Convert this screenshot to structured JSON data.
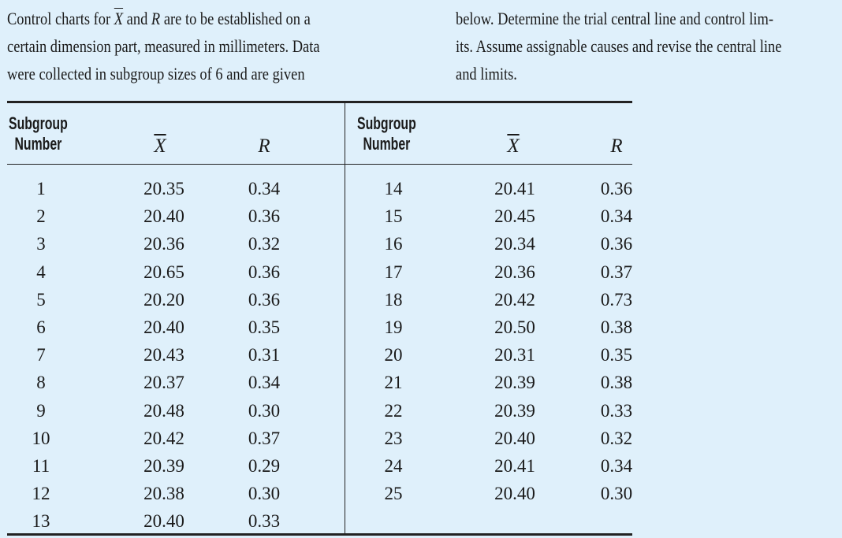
{
  "intro": {
    "left_lines": [
      [
        "Control charts for ",
        "X",
        " and ",
        "R",
        " are to be established on a"
      ],
      [
        "certain dimension part, measured in millimeters. Data"
      ],
      [
        "were collected in subgroup sizes of 6 and are given"
      ]
    ],
    "right_lines": [
      "below. Determine the trial central line and control lim-",
      "its. Assume assignable causes and revise the central line",
      "and limits."
    ]
  },
  "table": {
    "headers": {
      "subgroup_line1": "Subgroup",
      "subgroup_line2": "Number",
      "xbar": "X",
      "r": "R"
    },
    "left_rows": [
      [
        "1",
        "20.35",
        "0.34"
      ],
      [
        "2",
        "20.40",
        "0.36"
      ],
      [
        "3",
        "20.36",
        "0.32"
      ],
      [
        "4",
        "20.65",
        "0.36"
      ],
      [
        "5",
        "20.20",
        "0.36"
      ],
      [
        "6",
        "20.40",
        "0.35"
      ],
      [
        "7",
        "20.43",
        "0.31"
      ],
      [
        "8",
        "20.37",
        "0.34"
      ],
      [
        "9",
        "20.48",
        "0.30"
      ],
      [
        "10",
        "20.42",
        "0.37"
      ],
      [
        "11",
        "20.39",
        "0.29"
      ],
      [
        "12",
        "20.38",
        "0.30"
      ],
      [
        "13",
        "20.40",
        "0.33"
      ]
    ],
    "right_rows": [
      [
        "14",
        "20.41",
        "0.36"
      ],
      [
        "15",
        "20.45",
        "0.34"
      ],
      [
        "16",
        "20.34",
        "0.36"
      ],
      [
        "17",
        "20.36",
        "0.37"
      ],
      [
        "18",
        "20.42",
        "0.73"
      ],
      [
        "19",
        "20.50",
        "0.38"
      ],
      [
        "20",
        "20.31",
        "0.35"
      ],
      [
        "21",
        "20.39",
        "0.38"
      ],
      [
        "22",
        "20.39",
        "0.33"
      ],
      [
        "23",
        "20.40",
        "0.32"
      ],
      [
        "24",
        "20.41",
        "0.34"
      ],
      [
        "25",
        "20.40",
        "0.30"
      ]
    ]
  }
}
